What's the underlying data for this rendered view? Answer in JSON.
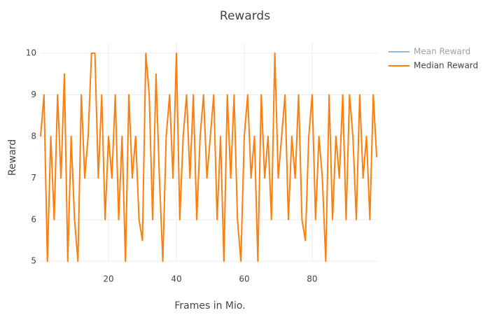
{
  "chart_data": {
    "type": "line",
    "title": "Rewards",
    "xlabel": "Frames in Mio.",
    "ylabel": "Reward",
    "x": [
      0,
      1,
      2,
      3,
      4,
      5,
      6,
      7,
      8,
      9,
      10,
      11,
      12,
      13,
      14,
      15,
      16,
      17,
      18,
      19,
      20,
      21,
      22,
      23,
      24,
      25,
      26,
      27,
      28,
      29,
      30,
      31,
      32,
      33,
      34,
      35,
      36,
      37,
      38,
      39,
      40,
      41,
      42,
      43,
      44,
      45,
      46,
      47,
      48,
      49,
      50,
      51,
      52,
      53,
      54,
      55,
      56,
      57,
      58,
      59,
      60,
      61,
      62,
      63,
      64,
      65,
      66,
      67,
      68,
      69,
      70,
      71,
      72,
      73,
      74,
      75,
      76,
      77,
      78,
      79,
      80,
      81,
      82,
      83,
      84,
      85,
      86,
      87,
      88,
      89,
      90,
      91,
      92,
      93,
      94,
      95,
      96,
      97,
      98,
      99
    ],
    "series": [
      {
        "name": "Mean Reward",
        "color": "#1f77b4",
        "visible": false
      },
      {
        "name": "Median Reward",
        "color": "#ff7f0e",
        "visible": true,
        "values": [
          8,
          9,
          5,
          8,
          6,
          9,
          7,
          9.5,
          5,
          8,
          6,
          5,
          9,
          7,
          8,
          10,
          10,
          7,
          9,
          6,
          8,
          7,
          9,
          6,
          8,
          5,
          9,
          7,
          8,
          6,
          5.5,
          10,
          9,
          6,
          9.5,
          7,
          5,
          8,
          9,
          7,
          10,
          6,
          8,
          9,
          7,
          9,
          6,
          8,
          9,
          7,
          8,
          9,
          6,
          8,
          5,
          9,
          7,
          9,
          6,
          5,
          8,
          9,
          7,
          8,
          5,
          9,
          7,
          8,
          6,
          10,
          7,
          8,
          9,
          6,
          8,
          7,
          9,
          6,
          5.5,
          8,
          9,
          6,
          8,
          7,
          5,
          9,
          6,
          8,
          7,
          9,
          6,
          9,
          8,
          6,
          9,
          7,
          8,
          6,
          9,
          7.5
        ]
      }
    ],
    "xlim": [
      0,
      99.6
    ],
    "xticks": [
      20,
      40,
      60,
      80
    ],
    "ylim": [
      4.97,
      10.27
    ],
    "yticks": [
      5,
      6,
      7,
      8,
      9,
      10
    ],
    "grid": true
  }
}
